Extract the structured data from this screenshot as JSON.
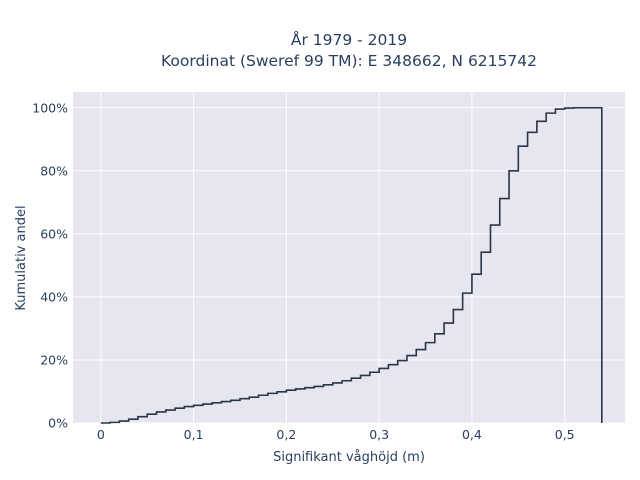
{
  "chart_data": {
    "type": "line",
    "line_shape": "step",
    "title_lines": [
      "År 1979 - 2019",
      "Koordinat (Sweref 99 TM): E 348662, N 6215742"
    ],
    "xlabel": "Signifikant våghöjd (m)",
    "ylabel": "Kumulativ andel",
    "xlim": [
      -0.03,
      0.565
    ],
    "ylim": [
      0,
      1.05
    ],
    "xticks": [
      0,
      0.1,
      0.2,
      0.3,
      0.4,
      0.5
    ],
    "xtick_labels": [
      "0",
      "0,1",
      "0,2",
      "0,3",
      "0,4",
      "0,5"
    ],
    "yticks": [
      0,
      0.2,
      0.4,
      0.6,
      0.8,
      1.0
    ],
    "ytick_labels": [
      "0%",
      "20%",
      "40%",
      "60%",
      "80%",
      "100%"
    ],
    "grid": true,
    "colors": {
      "plot_bg": "#e5e6f0",
      "grid": "#ffffff",
      "line": "#2a3546",
      "text": "#2a3f5f"
    },
    "series": [
      {
        "x": [
          0,
          0.01,
          0.02,
          0.03,
          0.04,
          0.05,
          0.06,
          0.07,
          0.08,
          0.09,
          0.1,
          0.11,
          0.12,
          0.13,
          0.14,
          0.15,
          0.16,
          0.17,
          0.18,
          0.19,
          0.2,
          0.21,
          0.22,
          0.23,
          0.24,
          0.25,
          0.26,
          0.27,
          0.28,
          0.29,
          0.3,
          0.31,
          0.32,
          0.33,
          0.34,
          0.35,
          0.36,
          0.37,
          0.38,
          0.39,
          0.4,
          0.41,
          0.42,
          0.43,
          0.44,
          0.45,
          0.46,
          0.47,
          0.48,
          0.49,
          0.5,
          0.51,
          0.52,
          0.53,
          0.54
        ],
        "y": [
          0,
          0.002,
          0.006,
          0.012,
          0.02,
          0.028,
          0.035,
          0.041,
          0.047,
          0.052,
          0.056,
          0.06,
          0.064,
          0.068,
          0.072,
          0.077,
          0.082,
          0.088,
          0.094,
          0.099,
          0.104,
          0.108,
          0.112,
          0.116,
          0.121,
          0.127,
          0.134,
          0.142,
          0.151,
          0.161,
          0.173,
          0.185,
          0.198,
          0.214,
          0.233,
          0.255,
          0.283,
          0.317,
          0.36,
          0.412,
          0.472,
          0.542,
          0.628,
          0.712,
          0.8,
          0.878,
          0.922,
          0.957,
          0.983,
          0.996,
          0.999,
          1.0,
          1.0,
          1.0,
          0
        ]
      }
    ]
  }
}
